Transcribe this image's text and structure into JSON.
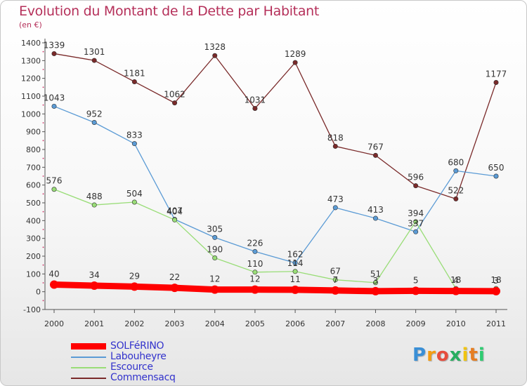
{
  "title": "Evolution du Montant de la Dette par Habitant",
  "subtitle": "(en €)",
  "brand": {
    "letters": [
      "P",
      "r",
      "o",
      "x",
      "i",
      "t",
      "i"
    ],
    "colors": [
      "#3a8fd6",
      "#f39c12",
      "#e74c3c",
      "#27ae60",
      "#f1c40f",
      "#e67e22",
      "#2ecc71"
    ]
  },
  "chart_data": {
    "type": "line",
    "x": [
      "2000",
      "2001",
      "2002",
      "2003",
      "2004",
      "2005",
      "2006",
      "2007",
      "2008",
      "2009",
      "2010",
      "2011"
    ],
    "ylim": [
      -100,
      1400
    ],
    "yticks": [
      "-100",
      "0",
      "100",
      "200",
      "300",
      "400",
      "500",
      "600",
      "700",
      "800",
      "900",
      "1000",
      "1100",
      "1200",
      "1300",
      "1400"
    ],
    "grid": false,
    "legend_position": "bottom-left",
    "series": [
      {
        "name": "SOLFéRINO",
        "color": "#ff0000",
        "values": [
          40,
          34,
          29,
          22,
          12,
          12,
          11,
          7,
          3,
          5,
          4,
          3
        ],
        "labels": [
          "40",
          "34",
          "29",
          "22",
          "12",
          "12",
          "11",
          "7",
          "3",
          "5",
          "4",
          "3"
        ]
      },
      {
        "name": "Labouheyre",
        "color": "#5b9bd5",
        "values": [
          1043,
          952,
          833,
          407,
          305,
          226,
          162,
          473,
          413,
          337,
          680,
          650
        ],
        "labels": [
          "1043",
          "952",
          "833",
          "407",
          "305",
          "226",
          "162",
          "473",
          "413",
          "337",
          "680",
          "650"
        ]
      },
      {
        "name": "Escource",
        "color": "#99dd77",
        "values": [
          576,
          488,
          504,
          404,
          190,
          110,
          114,
          67,
          51,
          394,
          18,
          18
        ],
        "labels": [
          "576",
          "488",
          "504",
          "404",
          "190",
          "110",
          "114",
          "67",
          "51",
          "394",
          "18",
          "18"
        ]
      },
      {
        "name": "Commensacq",
        "color": "#7a2a2a",
        "values": [
          1339,
          1301,
          1181,
          1062,
          1328,
          1031,
          1289,
          818,
          767,
          596,
          522,
          1177
        ],
        "labels": [
          "1339",
          "1301",
          "1181",
          "1062",
          "1328",
          "1031",
          "1289",
          "818",
          "767",
          "596",
          "522",
          "1177"
        ]
      }
    ]
  }
}
